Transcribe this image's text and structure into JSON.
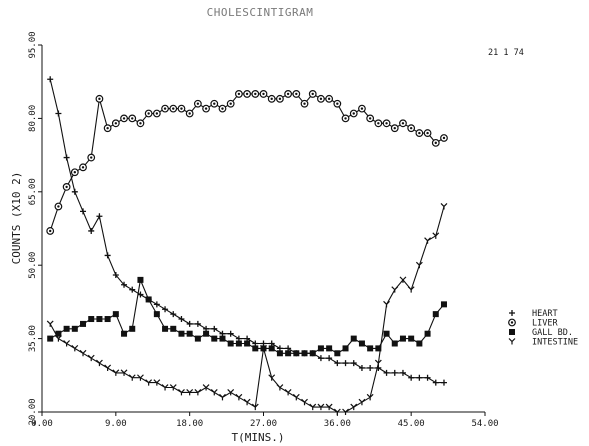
{
  "chart_data": {
    "type": "line",
    "title": "CHOLESCINTIGRAM",
    "date_label": "21  1  74",
    "xlabel": "T(MINS.)",
    "ylabel": "COUNTS (X10 2)",
    "xlim": [
      0,
      54
    ],
    "ylim": [
      20,
      95
    ],
    "xticks": [
      0,
      9,
      18,
      27,
      36,
      45,
      54
    ],
    "xtick_labels": [
      "0.00",
      "9.00",
      "18.00",
      "27.00",
      "36.00",
      "45.00",
      "54.00"
    ],
    "yticks": [
      20,
      35,
      50,
      65,
      80,
      95
    ],
    "ytick_labels": [
      "20.00",
      "35.00",
      "50.00",
      "65.00",
      "80.00",
      "95.00"
    ],
    "legend": [
      {
        "symbol": "+",
        "label": "HEART"
      },
      {
        "symbol": "O",
        "label": "LIVER"
      },
      {
        "symbol": "■",
        "label": "GALL BD."
      },
      {
        "symbol": "Y",
        "label": "INTESTINE"
      }
    ],
    "series": [
      {
        "name": "HEART",
        "marker": "plus",
        "x": [
          1,
          2,
          3,
          4,
          5,
          6,
          7,
          8,
          9,
          10,
          11,
          12,
          13,
          14,
          15,
          16,
          17,
          18,
          19,
          20,
          21,
          22,
          23,
          24,
          25,
          26,
          27,
          28,
          29,
          30,
          31,
          32,
          33,
          34,
          35,
          36,
          37,
          38,
          39,
          40,
          41,
          42,
          43,
          44,
          45,
          46,
          47,
          48,
          49
        ],
        "y": [
          88,
          81,
          72,
          65,
          61,
          57,
          60,
          52,
          48,
          46,
          45,
          44,
          43,
          42,
          41,
          40,
          39,
          38,
          38,
          37,
          37,
          36,
          36,
          35,
          35,
          34,
          34,
          34,
          33,
          33,
          32,
          32,
          32,
          31,
          31,
          30,
          30,
          30,
          29,
          29,
          29,
          28,
          28,
          28,
          27,
          27,
          27,
          26,
          26
        ]
      },
      {
        "name": "LIVER",
        "marker": "circle",
        "x": [
          1,
          2,
          3,
          4,
          5,
          6,
          7,
          8,
          9,
          10,
          11,
          12,
          13,
          14,
          15,
          16,
          17,
          18,
          19,
          20,
          21,
          22,
          23,
          24,
          25,
          26,
          27,
          28,
          29,
          30,
          31,
          32,
          33,
          34,
          35,
          36,
          37,
          38,
          39,
          40,
          41,
          42,
          43,
          44,
          45,
          46,
          47,
          48,
          49
        ],
        "y": [
          57,
          62,
          66,
          69,
          70,
          72,
          84,
          78,
          79,
          80,
          80,
          79,
          81,
          81,
          82,
          82,
          82,
          81,
          83,
          82,
          83,
          82,
          83,
          85,
          85,
          85,
          85,
          84,
          84,
          85,
          85,
          83,
          85,
          84,
          84,
          83,
          80,
          81,
          82,
          80,
          79,
          79,
          78,
          79,
          78,
          77,
          77,
          75,
          76
        ]
      },
      {
        "name": "GALL BD.",
        "marker": "square",
        "x": [
          1,
          2,
          3,
          4,
          5,
          6,
          7,
          8,
          9,
          10,
          11,
          12,
          13,
          14,
          15,
          16,
          17,
          18,
          19,
          20,
          21,
          22,
          23,
          24,
          25,
          26,
          27,
          28,
          29,
          30,
          31,
          32,
          33,
          34,
          35,
          36,
          37,
          38,
          39,
          40,
          41,
          42,
          43,
          44,
          45,
          46,
          47,
          48,
          49
        ],
        "y": [
          35,
          36,
          37,
          37,
          38,
          39,
          39,
          39,
          40,
          36,
          37,
          47,
          43,
          40,
          37,
          37,
          36,
          36,
          35,
          36,
          35,
          35,
          34,
          34,
          34,
          33,
          33,
          33,
          32,
          32,
          32,
          32,
          32,
          33,
          33,
          32,
          33,
          35,
          34,
          33,
          33,
          36,
          34,
          35,
          35,
          34,
          36,
          40,
          42
        ]
      },
      {
        "name": "INTESTINE",
        "marker": "y",
        "x": [
          1,
          2,
          3,
          4,
          5,
          6,
          7,
          8,
          9,
          10,
          11,
          12,
          13,
          14,
          15,
          16,
          17,
          18,
          19,
          20,
          21,
          22,
          23,
          24,
          25,
          26,
          27,
          28,
          29,
          30,
          31,
          32,
          33,
          34,
          35,
          36,
          37,
          38,
          39,
          40,
          41,
          42,
          43,
          44,
          45,
          46,
          47,
          48,
          49
        ],
        "y": [
          38,
          35,
          34,
          33,
          32,
          31,
          30,
          29,
          28,
          28,
          27,
          27,
          26,
          26,
          25,
          25,
          24,
          24,
          24,
          25,
          24,
          23,
          24,
          23,
          22,
          21,
          33,
          27,
          25,
          24,
          23,
          22,
          21,
          21,
          21,
          20,
          20,
          21,
          22,
          23,
          30,
          42,
          45,
          47,
          45,
          50,
          55,
          56,
          62
        ]
      }
    ]
  }
}
